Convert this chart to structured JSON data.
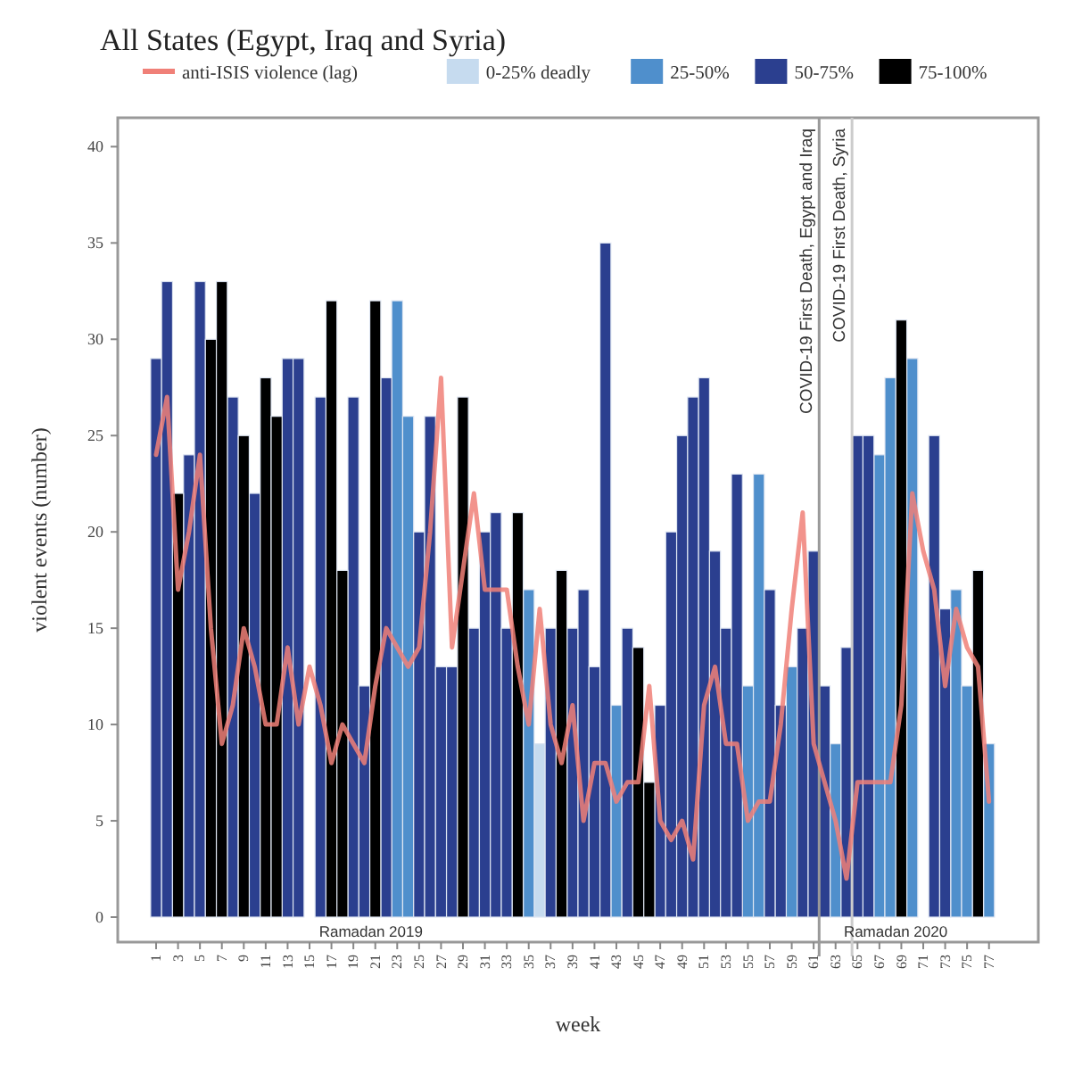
{
  "chart_data": {
    "type": "bar",
    "title": "All States (Egypt, Iraq and Syria)",
    "xlabel": "week",
    "ylabel": "violent events (number)",
    "x": [
      1,
      2,
      3,
      4,
      5,
      6,
      7,
      8,
      9,
      10,
      11,
      12,
      13,
      14,
      15,
      16,
      17,
      18,
      19,
      20,
      21,
      22,
      23,
      24,
      25,
      26,
      27,
      28,
      29,
      30,
      31,
      32,
      33,
      34,
      35,
      36,
      37,
      38,
      39,
      40,
      41,
      42,
      43,
      44,
      45,
      46,
      47,
      48,
      49,
      50,
      51,
      52,
      53,
      54,
      55,
      56,
      57,
      58,
      59,
      60,
      61,
      62,
      63,
      64,
      65,
      66,
      67,
      68,
      69,
      70,
      71,
      72,
      73,
      74,
      75,
      76,
      77
    ],
    "xlim": [
      -2.5,
      81.5
    ],
    "xticks": [
      1,
      3,
      5,
      7,
      9,
      11,
      13,
      15,
      17,
      19,
      21,
      23,
      25,
      27,
      29,
      31,
      33,
      35,
      37,
      39,
      41,
      43,
      45,
      47,
      49,
      51,
      53,
      55,
      57,
      59,
      61,
      63,
      65,
      67,
      69,
      71,
      73,
      75,
      77
    ],
    "ylim": [
      0,
      41.5
    ],
    "yticks": [
      0,
      5,
      10,
      15,
      20,
      25,
      30,
      35,
      40
    ],
    "grid": false,
    "legend": "top",
    "series": [
      {
        "name": "anti-ISIS violence (lag)",
        "type": "line",
        "color": "#f08078",
        "values": [
          24,
          27,
          17,
          20,
          24,
          15,
          9,
          11,
          15,
          13,
          10,
          10,
          14,
          10,
          13,
          11,
          8,
          10,
          9,
          8,
          12,
          15,
          14,
          13,
          14,
          20,
          28,
          14,
          18,
          22,
          17,
          17,
          17,
          13,
          10,
          16,
          10,
          8,
          11,
          5,
          8,
          8,
          6,
          7,
          7,
          12,
          5,
          4,
          5,
          3,
          11,
          13,
          9,
          9,
          5,
          6,
          6,
          10,
          16,
          21,
          9,
          7,
          5,
          2,
          7,
          7,
          7,
          7,
          11,
          22,
          19,
          17,
          12,
          16,
          14,
          13,
          6
        ]
      },
      {
        "name": "0-25% deadly",
        "color": "#c6dbef",
        "values": [
          null,
          null,
          null,
          null,
          null,
          null,
          null,
          null,
          null,
          null,
          null,
          null,
          null,
          null,
          null,
          null,
          null,
          null,
          null,
          null,
          null,
          null,
          null,
          null,
          null,
          null,
          null,
          null,
          null,
          null,
          null,
          null,
          null,
          null,
          null,
          9,
          null,
          null,
          null,
          null,
          null,
          null,
          null,
          null,
          null,
          null,
          null,
          null,
          null,
          null,
          null,
          null,
          null,
          null,
          null,
          null,
          null,
          null,
          null,
          null,
          null,
          null,
          null,
          null,
          null,
          null,
          null,
          null,
          null,
          null,
          null,
          null,
          null,
          null,
          null,
          null,
          null
        ]
      },
      {
        "name": "25-50%",
        "color": "#4f8fcc",
        "values": [
          null,
          null,
          null,
          null,
          null,
          null,
          null,
          null,
          null,
          null,
          null,
          null,
          null,
          null,
          null,
          null,
          null,
          null,
          null,
          null,
          null,
          null,
          32,
          26,
          null,
          null,
          null,
          null,
          null,
          null,
          null,
          null,
          null,
          null,
          17,
          null,
          null,
          null,
          null,
          null,
          null,
          null,
          11,
          null,
          null,
          null,
          null,
          null,
          null,
          null,
          null,
          null,
          null,
          null,
          12,
          23,
          null,
          null,
          13,
          null,
          null,
          null,
          9,
          null,
          null,
          null,
          24,
          28,
          null,
          29,
          null,
          null,
          null,
          17,
          12,
          null,
          9
        ]
      },
      {
        "name": "50-75%",
        "color": "#2b3f8f",
        "values": [
          29,
          33,
          null,
          24,
          33,
          null,
          null,
          27,
          null,
          22,
          null,
          null,
          29,
          29,
          null,
          27,
          null,
          null,
          27,
          12,
          null,
          28,
          null,
          null,
          20,
          26,
          13,
          13,
          null,
          15,
          20,
          21,
          15,
          null,
          null,
          null,
          15,
          null,
          15,
          17,
          13,
          35,
          null,
          15,
          null,
          null,
          11,
          20,
          25,
          27,
          28,
          19,
          15,
          23,
          null,
          null,
          17,
          11,
          null,
          15,
          19,
          12,
          null,
          14,
          25,
          25,
          null,
          null,
          null,
          null,
          null,
          25,
          16,
          null,
          null,
          null,
          null
        ]
      },
      {
        "name": "75-100%",
        "color": "#000000",
        "values": [
          null,
          null,
          22,
          null,
          null,
          30,
          33,
          null,
          25,
          null,
          28,
          26,
          null,
          null,
          null,
          null,
          32,
          18,
          null,
          null,
          32,
          null,
          null,
          null,
          null,
          null,
          null,
          null,
          27,
          null,
          null,
          null,
          null,
          21,
          null,
          null,
          null,
          18,
          null,
          null,
          null,
          null,
          null,
          null,
          14,
          7,
          null,
          null,
          null,
          null,
          null,
          null,
          null,
          null,
          null,
          null,
          null,
          null,
          null,
          null,
          null,
          null,
          null,
          null,
          null,
          null,
          null,
          null,
          31,
          null,
          null,
          null,
          null,
          null,
          null,
          18,
          null
        ]
      }
    ],
    "ref_lines": [
      {
        "axis": "x",
        "value": 61.5,
        "label": "COVID-19 First Death, Egypt and Iraq",
        "color": "#999999"
      },
      {
        "axis": "x",
        "value": 64.5,
        "label": "COVID-19 First Death, Syria",
        "color": "#cccccc"
      }
    ],
    "annotations": [
      "Ramadan 2019",
      "Ramadan 2020"
    ]
  }
}
